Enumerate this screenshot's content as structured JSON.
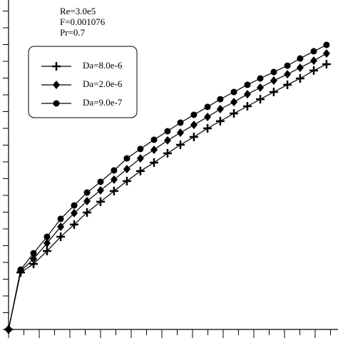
{
  "chart_data": {
    "type": "line",
    "annotations": [
      "Re=3.0e5",
      "F=0.001076",
      "Pr=0.7"
    ],
    "x": [
      0,
      0.79,
      1.63,
      2.51,
      3.4,
      4.28,
      5.12,
      6.0,
      6.88,
      7.72,
      8.6,
      9.49,
      10.37,
      11.21,
      12.09,
      12.98,
      13.81,
      14.7,
      15.58,
      16.42,
      17.3,
      18.19,
      19.02,
      19.91,
      20.74
    ],
    "series": [
      {
        "name": "Da=8.0e-6",
        "color": "#000000",
        "marker": "plus",
        "values": [
          0,
          3.4,
          3.91,
          4.68,
          5.53,
          6.26,
          6.98,
          7.62,
          8.26,
          8.85,
          9.45,
          9.96,
          10.51,
          11.02,
          11.49,
          12.0,
          12.43,
          12.89,
          13.32,
          13.74,
          14.17,
          14.6,
          14.98,
          15.45,
          15.83
        ]
      },
      {
        "name": "Da=2.0e-6",
        "color": "#000000",
        "marker": "diamond",
        "values": [
          0,
          3.49,
          4.21,
          5.15,
          6.13,
          6.94,
          7.66,
          8.3,
          8.94,
          9.57,
          10.21,
          10.72,
          11.28,
          11.74,
          12.21,
          12.68,
          13.15,
          13.57,
          14.04,
          14.43,
          14.85,
          15.23,
          15.62,
          16.04,
          16.47
        ]
      },
      {
        "name": "Da=9.0e-7",
        "color": "#000000",
        "marker": "circle",
        "values": [
          0,
          3.57,
          4.55,
          5.53,
          6.6,
          7.4,
          8.17,
          8.81,
          9.49,
          10.21,
          10.77,
          11.32,
          11.83,
          12.34,
          12.81,
          13.28,
          13.74,
          14.17,
          14.6,
          14.98,
          15.36,
          15.74,
          16.17,
          16.6,
          16.98
        ]
      }
    ],
    "xlim": [
      0,
      21.49
    ],
    "ylim": [
      0,
      19.66
    ],
    "xticks": [
      0,
      1,
      2,
      3,
      4,
      5,
      6,
      7,
      8,
      9,
      10,
      11,
      12,
      13,
      14,
      15,
      16,
      17,
      18,
      19,
      20,
      21
    ],
    "yticks": [
      0,
      1,
      2,
      3,
      4,
      5,
      6,
      7,
      8,
      9,
      10,
      11,
      12,
      13,
      14,
      15,
      16,
      17,
      18,
      19
    ],
    "legend": "upper left"
  }
}
